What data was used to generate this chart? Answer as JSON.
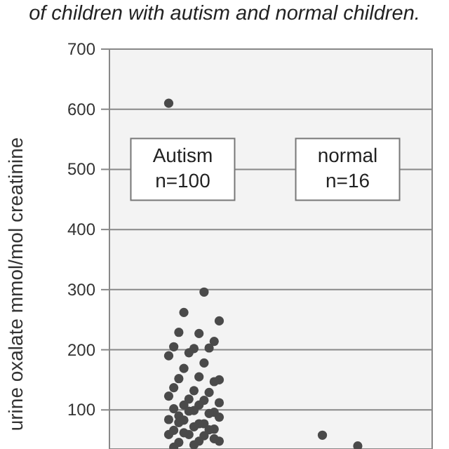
{
  "chart_data": {
    "type": "scatter",
    "title": "of children with autism and normal children.",
    "ylabel": "urine oxalate mmol/mol creatinine",
    "categories": [
      "Autism\nn=100",
      "normal\nn=16"
    ],
    "series": [
      {
        "color": "#4a4a4a",
        "x": [
          "Autism\nn=100",
          "Autism\nn=100",
          "Autism\nn=100",
          "Autism\nn=100",
          "Autism\nn=100",
          "Autism\nn=100",
          "Autism\nn=100",
          "Autism\nn=100",
          "Autism\nn=100",
          "Autism\nn=100",
          "Autism\nn=100",
          "Autism\nn=100",
          "Autism\nn=100",
          "Autism\nn=100",
          "Autism\nn=100",
          "Autism\nn=100",
          "Autism\nn=100",
          "Autism\nn=100",
          "Autism\nn=100",
          "Autism\nn=100",
          "Autism\nn=100",
          "Autism\nn=100",
          "Autism\nn=100",
          "Autism\nn=100",
          "Autism\nn=100",
          "Autism\nn=100",
          "Autism\nn=100",
          "Autism\nn=100",
          "Autism\nn=100",
          "Autism\nn=100",
          "Autism\nn=100",
          "Autism\nn=100",
          "Autism\nn=100",
          "Autism\nn=100",
          "Autism\nn=100",
          "Autism\nn=100",
          "Autism\nn=100",
          "Autism\nn=100",
          "Autism\nn=100",
          "Autism\nn=100",
          "Autism\nn=100",
          "Autism\nn=100",
          "Autism\nn=100",
          "Autism\nn=100",
          "Autism\nn=100",
          "Autism\nn=100",
          "Autism\nn=100",
          "Autism\nn=100",
          "Autism\nn=100",
          "Autism\nn=100",
          "Autism\nn=100",
          "Autism\nn=100",
          "Autism\nn=100"
        ],
        "values": [
          610,
          296,
          262,
          248,
          227,
          229,
          214,
          202,
          205,
          203,
          195,
          190,
          178,
          169,
          150,
          155,
          152,
          147,
          132,
          137,
          129,
          118,
          123,
          116,
          108,
          112,
          108,
          90,
          96,
          99,
          102,
          94,
          98,
          84,
          77,
          83,
          88,
          77,
          79,
          68,
          72,
          66,
          67,
          59,
          59,
          57,
          62,
          48,
          48,
          46,
          52,
          42,
          38
        ]
      },
      {
        "color": "#4a4a4a",
        "x": [
          "normal\nn=16",
          "normal\nn=16"
        ],
        "values": [
          58,
          40
        ]
      }
    ],
    "ylim": [
      35,
      700
    ],
    "yticks": [
      100,
      200,
      300,
      400,
      500,
      600,
      700
    ],
    "grid": "y",
    "marker": "circle"
  }
}
